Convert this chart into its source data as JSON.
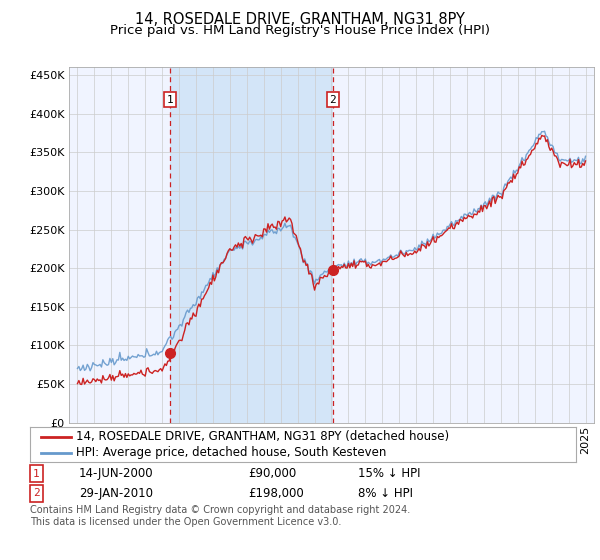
{
  "title": "14, ROSEDALE DRIVE, GRANTHAM, NG31 8PY",
  "subtitle": "Price paid vs. HM Land Registry's House Price Index (HPI)",
  "background_color": "#ffffff",
  "plot_bg_color": "#f0f4ff",
  "shade_color": "#d0e4f8",
  "grid_color": "#cccccc",
  "hpi_color": "#6699cc",
  "price_color": "#cc2222",
  "vline_color": "#cc2222",
  "sale1_date_num": 2000.46,
  "sale1_price": 90000,
  "sale1_label": "1",
  "sale2_date_num": 2010.08,
  "sale2_price": 198000,
  "sale2_label": "2",
  "ylim_min": 0,
  "ylim_max": 460000,
  "xlim_min": 1994.5,
  "xlim_max": 2025.5,
  "legend_line1": "14, ROSEDALE DRIVE, GRANTHAM, NG31 8PY (detached house)",
  "legend_line2": "HPI: Average price, detached house, South Kesteven",
  "sale1_date_str": "14-JUN-2000",
  "sale1_price_str": "£90,000",
  "sale1_hpi_str": "15% ↓ HPI",
  "sale2_date_str": "29-JAN-2010",
  "sale2_price_str": "£198,000",
  "sale2_hpi_str": "8% ↓ HPI",
  "footnote": "Contains HM Land Registry data © Crown copyright and database right 2024.\nThis data is licensed under the Open Government Licence v3.0.",
  "title_fontsize": 10.5,
  "subtitle_fontsize": 9.5,
  "tick_fontsize": 8,
  "legend_fontsize": 8.5,
  "annotation_fontsize": 8.5,
  "footnote_fontsize": 7.0
}
